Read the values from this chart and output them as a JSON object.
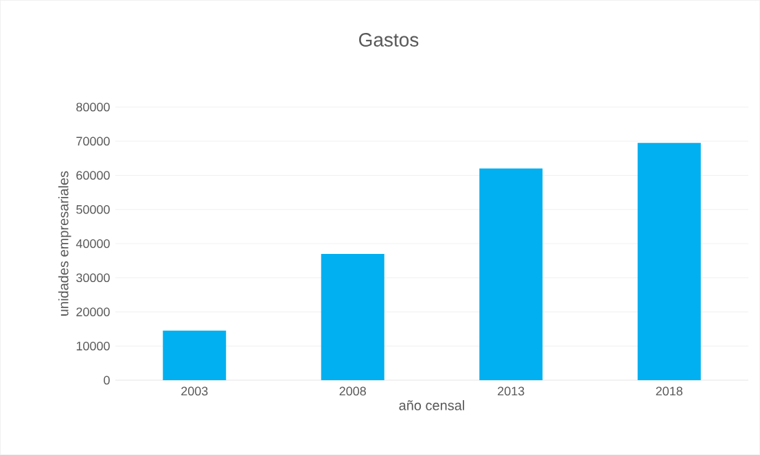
{
  "chart_data": {
    "type": "bar",
    "title": "Gastos",
    "xlabel": "año censal",
    "ylabel": "unidades empresariales",
    "categories": [
      "2003",
      "2008",
      "2013",
      "2018"
    ],
    "values": [
      14500,
      37000,
      62000,
      69500
    ],
    "color": "#00b0f0",
    "ylim": [
      0,
      80000
    ],
    "yticks": [
      0,
      10000,
      20000,
      30000,
      40000,
      50000,
      60000,
      70000,
      80000
    ],
    "grid": "y"
  }
}
